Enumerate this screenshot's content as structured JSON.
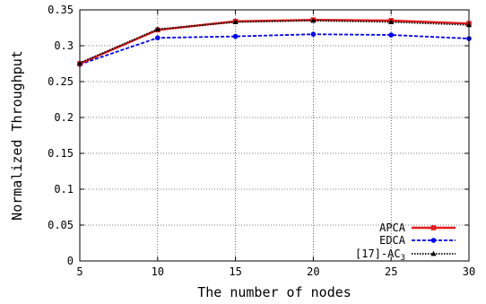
{
  "chart_data": {
    "type": "line",
    "title": "",
    "xlabel": "The number of nodes",
    "ylabel": "Normalized Throughput",
    "x": [
      5,
      10,
      15,
      20,
      25,
      30
    ],
    "xlim": [
      5,
      30
    ],
    "ylim": [
      0,
      0.35
    ],
    "xticks": [
      "5",
      "10",
      "15",
      "20",
      "25",
      "30"
    ],
    "yticks": [
      "0",
      "0.05",
      "0.1",
      "0.15",
      "0.2",
      "0.25",
      "0.3",
      "0.35"
    ],
    "grid": true,
    "legend_position": "bottom-right",
    "series": [
      {
        "name": "APCA",
        "values": [
          0.275,
          0.322,
          0.334,
          0.336,
          0.335,
          0.331
        ],
        "color": "#e31a1c",
        "style": "solid",
        "marker": "square"
      },
      {
        "name": "EDCA",
        "values": [
          0.274,
          0.311,
          0.313,
          0.316,
          0.315,
          0.31
        ],
        "color": "#0000ff",
        "style": "dashed",
        "marker": "circle"
      },
      {
        "name": "[17]-AC",
        "name_subscript": "3",
        "values": [
          0.276,
          0.323,
          0.333,
          0.335,
          0.333,
          0.329
        ],
        "color": "#000000",
        "style": "dotted",
        "marker": "triangle"
      }
    ]
  }
}
